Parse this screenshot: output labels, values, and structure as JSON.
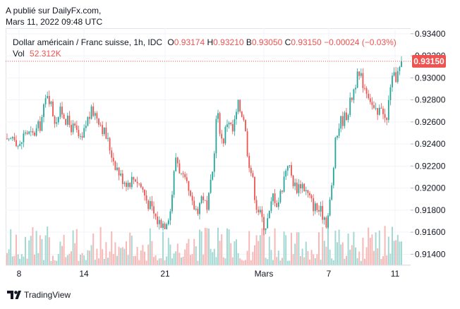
{
  "publisher": {
    "line1": "A publié sur DailyFx.com,",
    "line2": "Mars 11, 2022 09:48 UTC"
  },
  "legend": {
    "symbol": "Dollar américain / Franc suisse, 1h, IDC",
    "o_key": "O",
    "o_val": "0.93174",
    "h_key": "H",
    "h_val": "0.93210",
    "b_key": "B",
    "b_val": "0.93050",
    "c_key": "C",
    "c_val": "0.93150",
    "change": "−0.00024 (−0.03%)",
    "vol_key": "Vol",
    "vol_val": "52.312K"
  },
  "brand": {
    "name": "TradingView"
  },
  "colors": {
    "up": "#26a69a",
    "down": "#ef5350",
    "up_vol": "#a6d8d3",
    "down_vol": "#f7b9b8",
    "grid": "#f0f3fa",
    "text": "#131722"
  },
  "chart_data": {
    "type": "candlestick",
    "title": "Dollar américain / Franc suisse, 1h, IDC",
    "ylim": [
      0.913,
      0.9345
    ],
    "y_ticks": [
      "0.93400",
      "0.93200",
      "0.93000",
      "0.92800",
      "0.92600",
      "0.92400",
      "0.92200",
      "0.92000",
      "0.91800",
      "0.91600",
      "0.91400"
    ],
    "x_ticks": [
      "8",
      "14",
      "21",
      "Mars",
      "7",
      "11"
    ],
    "last_price": "0.93150",
    "last_value": 0.9315,
    "anchors": [
      [
        0,
        0.9245
      ],
      [
        6,
        0.9238
      ],
      [
        14,
        0.925
      ],
      [
        22,
        0.9236
      ],
      [
        30,
        0.9252
      ],
      [
        40,
        0.9247
      ],
      [
        52,
        0.9258
      ],
      [
        62,
        0.9288
      ],
      [
        72,
        0.9262
      ],
      [
        82,
        0.927
      ],
      [
        92,
        0.9258
      ],
      [
        102,
        0.9252
      ],
      [
        110,
        0.924
      ],
      [
        118,
        0.9262
      ],
      [
        126,
        0.927
      ],
      [
        134,
        0.9264
      ],
      [
        146,
        0.9245
      ],
      [
        156,
        0.9225
      ],
      [
        166,
        0.921
      ],
      [
        176,
        0.9205
      ],
      [
        186,
        0.921
      ],
      [
        196,
        0.92
      ],
      [
        202,
        0.919
      ],
      [
        210,
        0.918
      ],
      [
        218,
        0.917
      ],
      [
        228,
        0.9168
      ],
      [
        236,
        0.918
      ],
      [
        244,
        0.923
      ],
      [
        252,
        0.921
      ],
      [
        260,
        0.92
      ],
      [
        266,
        0.9185
      ],
      [
        274,
        0.918
      ],
      [
        282,
        0.9195
      ],
      [
        288,
        0.9178
      ],
      [
        296,
        0.9215
      ],
      [
        302,
        0.927
      ],
      [
        310,
        0.924
      ],
      [
        318,
        0.9265
      ],
      [
        324,
        0.925
      ],
      [
        332,
        0.9275
      ],
      [
        340,
        0.9265
      ],
      [
        346,
        0.923
      ],
      [
        352,
        0.921
      ],
      [
        358,
        0.9185
      ],
      [
        364,
        0.9175
      ],
      [
        370,
        0.9165
      ],
      [
        376,
        0.9175
      ],
      [
        382,
        0.9195
      ],
      [
        388,
        0.9185
      ],
      [
        394,
        0.92
      ],
      [
        402,
        0.9225
      ],
      [
        408,
        0.921
      ],
      [
        414,
        0.92
      ],
      [
        422,
        0.9205
      ],
      [
        430,
        0.9195
      ],
      [
        438,
        0.9185
      ],
      [
        446,
        0.918
      ],
      [
        454,
        0.9175
      ],
      [
        458,
        0.9168
      ],
      [
        464,
        0.9195
      ],
      [
        470,
        0.924
      ],
      [
        476,
        0.926
      ],
      [
        482,
        0.9263
      ],
      [
        488,
        0.927
      ],
      [
        494,
        0.9285
      ],
      [
        500,
        0.93
      ],
      [
        506,
        0.93
      ],
      [
        512,
        0.9292
      ],
      [
        518,
        0.9285
      ],
      [
        524,
        0.927
      ],
      [
        530,
        0.9265
      ],
      [
        536,
        0.9278
      ],
      [
        542,
        0.9255
      ],
      [
        548,
        0.9295
      ],
      [
        554,
        0.93
      ],
      [
        560,
        0.9305
      ],
      [
        564,
        0.9315
      ]
    ]
  }
}
